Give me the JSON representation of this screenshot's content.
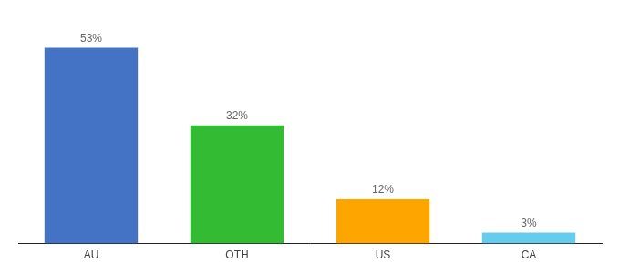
{
  "chart_data": {
    "type": "bar",
    "categories": [
      "AU",
      "OTH",
      "US",
      "CA"
    ],
    "values": [
      53,
      32,
      12,
      3
    ],
    "value_labels": [
      "53%",
      "32%",
      "12%",
      "3%"
    ],
    "data_labels": true,
    "colors": [
      "#4472C4",
      "#33BB33",
      "#FFA500",
      "#66CCEE"
    ],
    "ylim": [
      0,
      60
    ],
    "grid": false,
    "tick_labels": "x"
  }
}
